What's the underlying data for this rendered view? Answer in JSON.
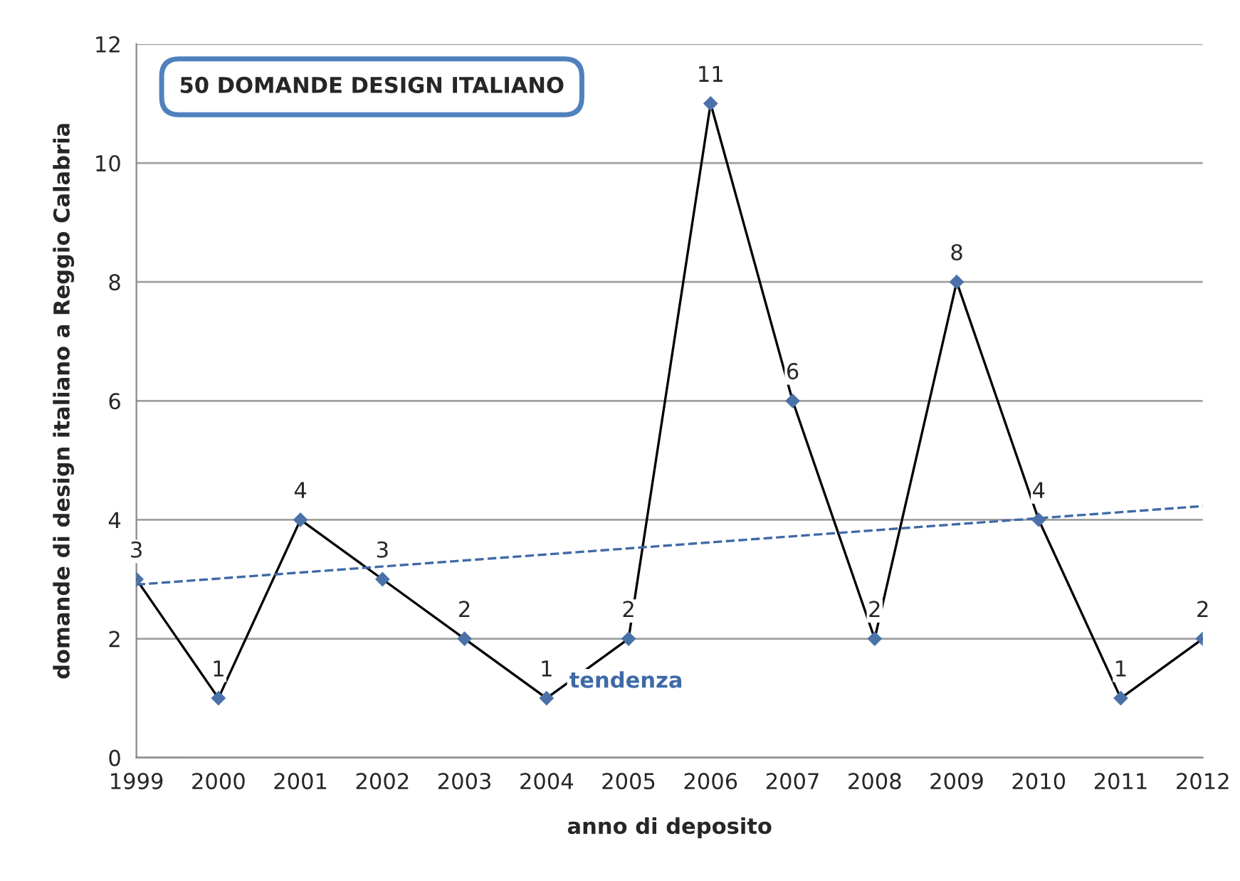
{
  "chart_data": {
    "type": "line",
    "xlabel": "anno di deposito",
    "ylabel": "domande di design italiano a Reggio Calabria",
    "x": [
      1999,
      2000,
      2001,
      2002,
      2003,
      2004,
      2005,
      2006,
      2007,
      2008,
      2009,
      2010,
      2011,
      2012
    ],
    "series": [
      {
        "color": "#000000",
        "values": [
          3,
          1,
          4,
          3,
          2,
          1,
          2,
          11,
          6,
          2,
          8,
          4,
          1,
          2
        ],
        "value_labels": [
          "3",
          "1",
          "4",
          "3",
          "2",
          "1",
          "2",
          "11",
          "6",
          "2",
          "8",
          "4",
          "1",
          "2"
        ],
        "marker": "diamond",
        "colors": [
          "#4a72a8",
          "#4a72a8",
          "#4a72a8",
          "#4a72a8",
          "#4a72a8",
          "#4a72a8",
          "#4a72a8",
          "#4a72a8",
          "#4a72a8",
          "#4a72a8",
          "#4a72a8",
          "#4a72a8",
          "#4a72a8",
          "#4a72a8"
        ]
      },
      {
        "name": "tendenza",
        "color": "#3e6aa6",
        "x": [
          1999,
          2012
        ],
        "values": [
          2.91,
          4.23
        ],
        "line_style": "dashed",
        "marker": "none"
      }
    ],
    "annotations": [
      "50 DOMANDE DESIGN ITALIANO"
    ],
    "xlim": [
      1999,
      2012
    ],
    "xticks": [
      1999,
      2000,
      2001,
      2002,
      2003,
      2004,
      2005,
      2006,
      2007,
      2008,
      2009,
      2010,
      2011,
      2012
    ],
    "ylim": [
      0,
      12
    ],
    "yticks": [
      0,
      2,
      4,
      6,
      8,
      10,
      12
    ],
    "grid": "y",
    "legend": false
  }
}
